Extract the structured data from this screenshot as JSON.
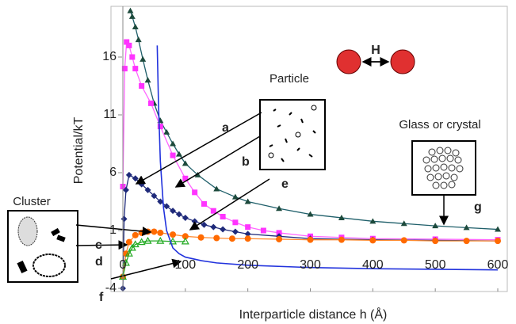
{
  "chart_data": {
    "type": "line",
    "y_label": "Potential/kT",
    "x_label": "Interparticle distance h (Å)",
    "xlim": [
      0,
      600
    ],
    "xticks": [
      0,
      100,
      200,
      300,
      400,
      500,
      600
    ],
    "ylim": [
      -4,
      20
    ],
    "yticks": [
      -4,
      1,
      6,
      11,
      16
    ],
    "annotations": {
      "particle": "Particle",
      "glass": "Glass or crystal",
      "cluster": "Cluster",
      "h": "H",
      "e": "e"
    },
    "series": [
      {
        "name": "g",
        "color": "#1d4a3c",
        "line_color": "#1f5f6a",
        "marker": "triangle",
        "x": [
          12,
          15,
          20,
          25,
          32,
          40,
          50,
          60,
          70,
          80,
          90,
          100,
          120,
          150,
          180,
          200,
          250,
          300,
          350,
          400,
          450,
          500,
          550,
          600
        ],
        "values": [
          20,
          19.5,
          18.6,
          17.5,
          15.8,
          14,
          12,
          10.5,
          9.5,
          8.5,
          7.6,
          6.8,
          5.8,
          4.6,
          3.9,
          3.5,
          2.9,
          2.4,
          2.1,
          1.8,
          1.6,
          1.4,
          1.25,
          1.1
        ]
      },
      {
        "name": "b",
        "color": "#ff33ff",
        "line_color": "#ff66ff",
        "marker": "square",
        "x": [
          0,
          3,
          6,
          10,
          15,
          20,
          30,
          45,
          60,
          80,
          100,
          115,
          130,
          145,
          160,
          180,
          200,
          225,
          250,
          300,
          350,
          400,
          500,
          600
        ],
        "values": [
          4.8,
          15,
          17.3,
          17,
          16,
          15,
          13.5,
          12,
          10,
          7.5,
          5.5,
          4.3,
          3.3,
          2.7,
          2.2,
          1.7,
          1.3,
          1,
          0.8,
          0.5,
          0.4,
          0.3,
          0.25,
          0.2
        ]
      },
      {
        "name": "a",
        "color": "#1f2a7a",
        "line_color": "#1f2a7a",
        "marker": "diamond",
        "x": [
          0,
          2,
          5,
          10,
          20,
          30,
          40,
          50,
          60,
          70,
          80,
          90,
          100,
          115,
          130,
          145,
          160,
          180,
          200,
          250,
          300,
          400,
          500,
          600
        ],
        "values": [
          -4,
          2,
          4.5,
          5.8,
          5.5,
          5,
          4.5,
          4,
          3.5,
          3.1,
          2.7,
          2.4,
          2.1,
          1.8,
          1.5,
          1.3,
          1.1,
          0.9,
          0.7,
          0.5,
          0.3,
          0.2,
          0.15,
          0.1
        ]
      },
      {
        "name": "c",
        "color": "#ff6a00",
        "line_color": "#ff8a30",
        "marker": "circle",
        "x": [
          0,
          5,
          10,
          20,
          30,
          40,
          50,
          60,
          80,
          100,
          125,
          150,
          175,
          200,
          250,
          300,
          350,
          400,
          450,
          500,
          550,
          600
        ],
        "values": [
          -3,
          -1,
          0,
          0.6,
          0.8,
          0.9,
          0.9,
          0.8,
          0.65,
          0.5,
          0.4,
          0.35,
          0.3,
          0.3,
          0.25,
          0.2,
          0.2,
          0.15,
          0.15,
          0.1,
          0.1,
          0.1
        ]
      },
      {
        "name": "d",
        "color": "#22aa22",
        "line_color": "#22aa22",
        "marker": "open-triangle",
        "x": [
          0,
          5,
          10,
          15,
          20,
          30,
          40,
          60,
          80,
          100
        ],
        "values": [
          -3,
          -1.8,
          -1,
          -0.5,
          -0.2,
          0,
          0.1,
          0.1,
          0.05,
          0.05
        ]
      },
      {
        "name": "f",
        "color": "#2233dd",
        "line_color": "#2233dd",
        "marker": "none",
        "x": [
          55,
          57,
          60,
          65,
          70,
          80,
          90,
          100,
          125,
          150,
          200,
          300,
          400,
          500,
          600
        ],
        "values": [
          17,
          12,
          7,
          3,
          1,
          -0.5,
          -1,
          -1.3,
          -1.6,
          -1.8,
          -2,
          -2.2,
          -2.3,
          -2.35,
          -2.4
        ]
      }
    ]
  }
}
